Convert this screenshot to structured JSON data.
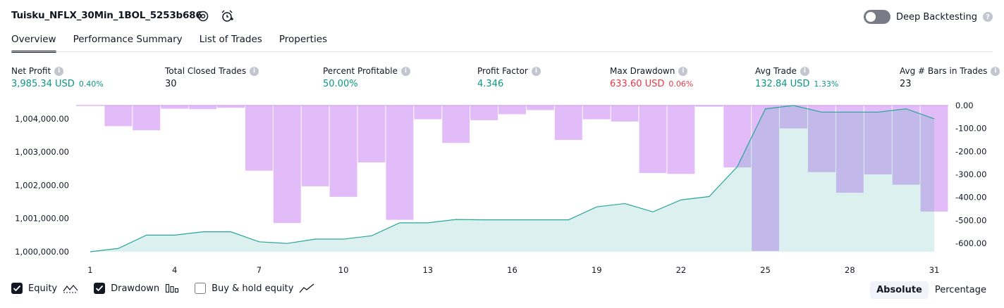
{
  "header": {
    "strategy_name": "Tuisku_NFLX_30Min_1BOL_5253b686",
    "deep_backtesting_label": "Deep Backtesting",
    "deep_backtesting_on": false,
    "help_mark": "?"
  },
  "tabs": [
    {
      "label": "Overview",
      "active": true
    },
    {
      "label": "Performance Summary",
      "active": false
    },
    {
      "label": "List of Trades",
      "active": false
    },
    {
      "label": "Properties",
      "active": false
    }
  ],
  "metrics": [
    {
      "label": "Net Profit",
      "value": "3,985.34 USD",
      "pct": "0.40%",
      "color": "green"
    },
    {
      "label": "Total Closed Trades",
      "value": "30",
      "pct": "",
      "color": "neutral"
    },
    {
      "label": "Percent Profitable",
      "value": "50.00%",
      "pct": "",
      "color": "green"
    },
    {
      "label": "Profit Factor",
      "value": "4.346",
      "pct": "",
      "color": "green"
    },
    {
      "label": "Max Drawdown",
      "value": "633.60 USD",
      "pct": "0.06%",
      "color": "red"
    },
    {
      "label": "Avg Trade",
      "value": "132.84 USD",
      "pct": "1.33%",
      "color": "green"
    },
    {
      "label": "Avg # Bars in Trades",
      "value": "23",
      "pct": "",
      "color": "neutral"
    }
  ],
  "info_mark": "i",
  "chart_data": {
    "type": "area",
    "x": [
      1,
      2,
      3,
      4,
      5,
      6,
      7,
      8,
      9,
      10,
      11,
      12,
      13,
      14,
      15,
      16,
      17,
      18,
      19,
      20,
      21,
      22,
      23,
      24,
      25,
      26,
      27,
      28,
      29,
      30,
      31
    ],
    "x_ticks": [
      "1",
      "4",
      "7",
      "10",
      "13",
      "16",
      "19",
      "22",
      "25",
      "28",
      "31"
    ],
    "series": [
      {
        "name": "Equity",
        "axis": "left",
        "type": "area",
        "color": "#26a69a",
        "values": [
          1000000,
          1000100,
          1000500,
          1000500,
          1000600,
          1000600,
          1000300,
          1000250,
          1000380,
          1000380,
          1000480,
          1000870,
          1000870,
          1000970,
          1000960,
          1000960,
          1000960,
          1000960,
          1001350,
          1001450,
          1001200,
          1001560,
          1001660,
          1002560,
          1004300,
          1004400,
          1004200,
          1004200,
          1004200,
          1004300,
          1004000
        ]
      },
      {
        "name": "Drawdown",
        "axis": "right",
        "type": "bar",
        "color": "#ce93f5",
        "values": [
          0,
          -90,
          -108,
          -14,
          -16,
          -10,
          -284,
          -512,
          -352,
          -398,
          -248,
          -498,
          -60,
          -163,
          -64,
          -38,
          -20,
          -150,
          -60,
          -70,
          -294,
          -298,
          -5,
          -270,
          -633.6,
          -100,
          -290,
          -380,
          -300,
          -345,
          -462
        ]
      }
    ],
    "y_left_ticks": [
      "1,000,000.00",
      "1,001,000.00",
      "1,002,000.00",
      "1,003,000.00",
      "1,004,000.00"
    ],
    "y_left_range": [
      1000000,
      1004400
    ],
    "y_right_ticks": [
      "0.00",
      "-100.00",
      "-200.00",
      "-300.00",
      "-400.00",
      "-500.00",
      "-600.00"
    ],
    "y_right_range": [
      -637,
      0
    ],
    "grid": false
  },
  "legend": [
    {
      "label": "Equity",
      "checked": true,
      "icon": "equity-area-icon"
    },
    {
      "label": "Drawdown",
      "checked": true,
      "icon": "drawdown-bars-icon"
    },
    {
      "label": "Buy & hold equity",
      "checked": false,
      "icon": "buy-hold-line-icon"
    }
  ],
  "scale_mode": {
    "options": [
      "Absolute",
      "Percentage"
    ],
    "selected": "Absolute"
  }
}
